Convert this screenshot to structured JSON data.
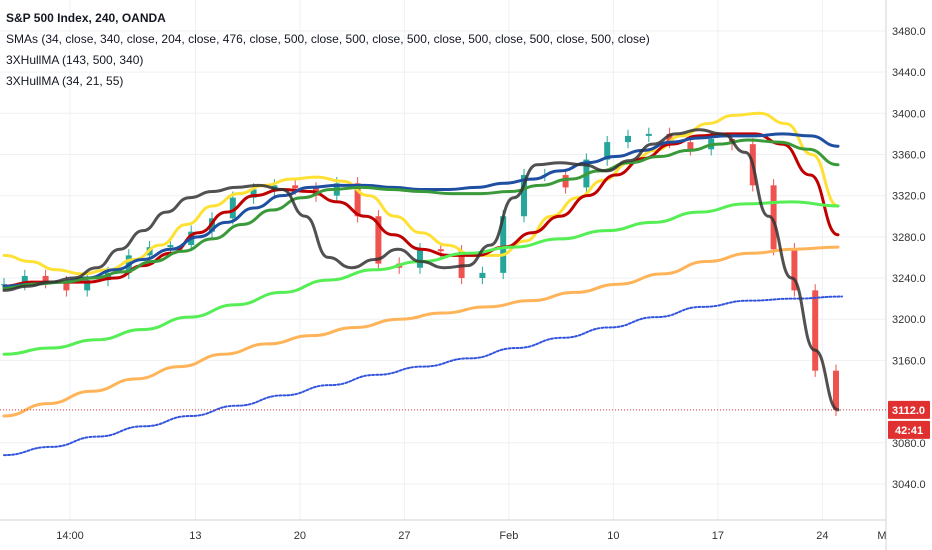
{
  "chart_data": {
    "type": "candlestick",
    "title": "S&P 500 Index, 240, OANDA",
    "indicators": [
      "SMAs (34, close, 340, close, 204, close, 476, close, 500, close, 500, close, 500, close, 500, close, 500, close, 500, close)",
      "3XHullMA (143, 500, 340)",
      "3XHullMA (34, 21, 55)"
    ],
    "y_ticks": [
      3480,
      3440,
      3400,
      3360,
      3320,
      3280,
      3240,
      3200,
      3160,
      3080,
      3040
    ],
    "y_tick_labels": [
      "3480.0",
      "3440.0",
      "3400.0",
      "3360.0",
      "3320.0",
      "3280.0",
      "3240.0",
      "3200.0",
      "3160.0",
      "3080.0",
      "3040.0"
    ],
    "ylim": [
      3005,
      3510
    ],
    "x_ticks": [
      {
        "label": "14:00",
        "index": 0
      },
      {
        "label": "13",
        "index": 6
      },
      {
        "label": "20",
        "index": 11
      },
      {
        "label": "27",
        "index": 16
      },
      {
        "label": "Feb",
        "index": 21
      },
      {
        "label": "10",
        "index": 26
      },
      {
        "label": "17",
        "index": 31
      },
      {
        "label": "24",
        "index": 36
      },
      {
        "label": "M",
        "index": 40
      }
    ],
    "x_count": 41,
    "candle_closes": [
      3234,
      3242,
      3236,
      3228,
      3238,
      3245,
      3262,
      3270,
      3272,
      3285,
      3298,
      3318,
      3326,
      3330,
      3327,
      3320,
      3332,
      3300,
      3254,
      3250,
      3268,
      3266,
      3240,
      3245,
      3300,
      3340,
      3340,
      3328,
      3355,
      3372,
      3378,
      3380,
      3372,
      3365,
      3375,
      3370,
      3330,
      3268,
      3228,
      3150,
      3112
    ],
    "series": [
      {
        "color": "#FFE135",
        "values": [
          3262,
          3256,
          3248,
          3244,
          3248,
          3258,
          3272,
          3292,
          3310,
          3322,
          3330,
          3336,
          3338,
          3334,
          3320,
          3300,
          3284,
          3272,
          3262,
          3262,
          3276,
          3300,
          3318,
          3335,
          3352,
          3364,
          3378,
          3390,
          3398,
          3400,
          3390,
          3360,
          3310
        ]
      },
      {
        "color": "#C00000",
        "values": [
          3232,
          3236,
          3236,
          3236,
          3240,
          3252,
          3264,
          3284,
          3304,
          3320,
          3326,
          3324,
          3314,
          3300,
          3282,
          3268,
          3262,
          3262,
          3270,
          3284,
          3300,
          3320,
          3340,
          3356,
          3370,
          3378,
          3380,
          3380,
          3370,
          3340,
          3282
        ]
      },
      {
        "color": "#1E4FA0",
        "values": [
          3232,
          3234,
          3236,
          3240,
          3248,
          3258,
          3268,
          3280,
          3294,
          3308,
          3320,
          3328,
          3330,
          3330,
          3328,
          3326,
          3326,
          3328,
          3332,
          3336,
          3344,
          3352,
          3358,
          3364,
          3372,
          3376,
          3378,
          3378,
          3380,
          3378,
          3368
        ]
      },
      {
        "color": "#3A9A3A",
        "values": [
          3230,
          3234,
          3236,
          3240,
          3246,
          3256,
          3266,
          3278,
          3292,
          3306,
          3318,
          3326,
          3328,
          3326,
          3324,
          3322,
          3322,
          3324,
          3330,
          3336,
          3344,
          3352,
          3358,
          3364,
          3370,
          3374,
          3372,
          3365,
          3350
        ]
      },
      {
        "color": "#55EE55",
        "values": [
          3166,
          3172,
          3180,
          3190,
          3202,
          3214,
          3226,
          3238,
          3248,
          3256,
          3264,
          3270,
          3278,
          3286,
          3294,
          3304,
          3312,
          3314,
          3310
        ]
      },
      {
        "color": "#FFB45A",
        "values": [
          3106,
          3118,
          3130,
          3142,
          3154,
          3166,
          3176,
          3184,
          3192,
          3200,
          3206,
          3212,
          3218,
          3226,
          3234,
          3244,
          3256,
          3264,
          3268,
          3270
        ]
      },
      {
        "color": "#3355DD",
        "values": [
          3068,
          3076,
          3086,
          3096,
          3106,
          3116,
          3126,
          3136,
          3146,
          3154,
          3162,
          3172,
          3182,
          3192,
          3202,
          3212,
          3218,
          3220,
          3222
        ]
      },
      {
        "color": "#333333",
        "values": [
          3228,
          3232,
          3236,
          3240,
          3250,
          3268,
          3286,
          3304,
          3318,
          3324,
          3328,
          3330,
          3326,
          3300,
          3260,
          3250,
          3258,
          3268,
          3256,
          3250,
          3252,
          3272,
          3318,
          3350,
          3352,
          3350,
          3344,
          3354,
          3370,
          3380,
          3384,
          3380,
          3362,
          3300,
          3240,
          3170,
          3112
        ]
      }
    ],
    "last_price_label": "3112.0",
    "countdown_label": "42:41",
    "last_price": 3112,
    "grid": true
  }
}
